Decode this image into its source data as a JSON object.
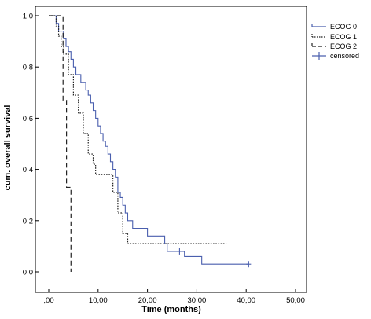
{
  "chart_data": {
    "type": "line",
    "subtype": "kaplan-meier step",
    "xlabel": "Time (months)",
    "ylabel": "cum. overall survival",
    "xlim": [
      0,
      50
    ],
    "ylim": [
      0,
      1
    ],
    "x_ticks": [
      ",00",
      "10,00",
      "20,00",
      "30,00",
      "40,00",
      "50,00"
    ],
    "y_ticks": [
      "0,0",
      "0,2",
      "0,4",
      "0,6",
      "0,8",
      "1,0"
    ],
    "grid": false,
    "legend_position": "right",
    "legend": [
      "ECOG 0",
      "ECOG 1",
      "ECOG 2",
      "censored"
    ],
    "colors": {
      "ecog0": "#4a5fae",
      "ecog1": "#222222",
      "ecog2": "#222222"
    },
    "series": [
      {
        "name": "ECOG 0",
        "style": "solid",
        "x": [
          0,
          1.5,
          2.0,
          3.0,
          3.5,
          4.0,
          4.5,
          5.0,
          5.5,
          6.5,
          7.5,
          8.0,
          8.5,
          9.0,
          9.5,
          10.0,
          10.5,
          11.0,
          11.5,
          12.0,
          12.5,
          13.0,
          13.5,
          14.0,
          14.5,
          15.0,
          15.5,
          16.0,
          17.0,
          18.0,
          20.0,
          22.0,
          23.5,
          24.0,
          27.5,
          31.0,
          40.5
        ],
        "y": [
          1.0,
          0.97,
          0.94,
          0.91,
          0.88,
          0.86,
          0.83,
          0.8,
          0.77,
          0.74,
          0.71,
          0.69,
          0.66,
          0.63,
          0.6,
          0.57,
          0.54,
          0.51,
          0.49,
          0.46,
          0.43,
          0.4,
          0.37,
          0.31,
          0.29,
          0.26,
          0.23,
          0.2,
          0.17,
          0.17,
          0.14,
          0.14,
          0.11,
          0.08,
          0.06,
          0.03,
          0.03
        ],
        "censored_x": [
          26.5,
          40.5
        ],
        "censored_y": [
          0.08,
          0.03
        ]
      },
      {
        "name": "ECOG 1",
        "style": "dotted",
        "x": [
          0,
          1.5,
          2.0,
          2.5,
          3.0,
          4.0,
          5.0,
          6.0,
          7.0,
          8.0,
          9.0,
          9.5,
          12.5,
          13.0,
          14.0,
          15.0,
          16.0,
          36.0
        ],
        "y": [
          1.0,
          0.96,
          0.92,
          0.88,
          0.85,
          0.77,
          0.69,
          0.62,
          0.54,
          0.46,
          0.42,
          0.38,
          0.38,
          0.31,
          0.23,
          0.15,
          0.11,
          0.11
        ]
      },
      {
        "name": "ECOG 2",
        "style": "dashed",
        "x": [
          0,
          2.9,
          3.6,
          4.5,
          4.5
        ],
        "y": [
          1.0,
          0.67,
          0.33,
          0.33,
          0.0
        ]
      }
    ]
  }
}
